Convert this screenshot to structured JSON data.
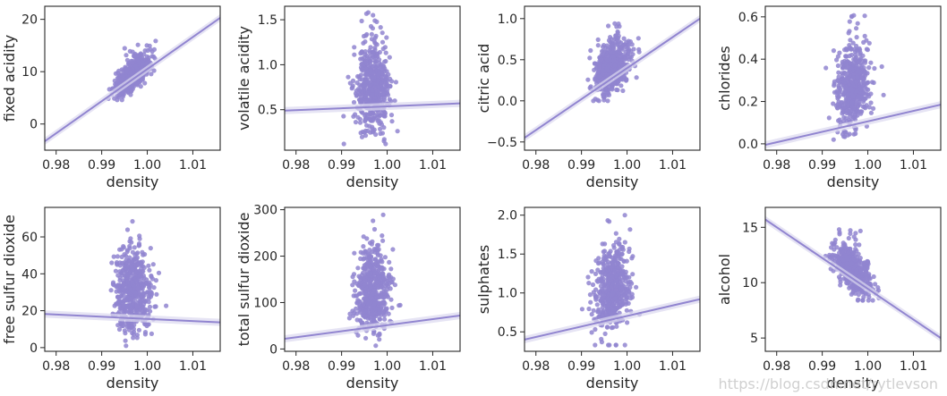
{
  "figure": {
    "point_color": "#9185d0",
    "line_color": "#9185d0",
    "band_color": "#dcd8f0",
    "watermark": "https://blog.csdn.net/rytlevson"
  },
  "chart_data": [
    {
      "type": "scatter",
      "xlabel": "density",
      "ylabel": "fixed acidity",
      "xlim": [
        0.9775,
        1.016
      ],
      "ylim": [
        -5,
        22.5
      ],
      "xticks": [
        0.98,
        0.99,
        1.0,
        1.01
      ],
      "xtick_labels": [
        "0.98",
        "0.99",
        "1.00",
        "1.01"
      ],
      "yticks": [
        0,
        10,
        20
      ],
      "ytick_labels": [
        "0",
        "10",
        "20"
      ],
      "cloud": {
        "x_center": 0.9967,
        "x_spread": 0.0019,
        "y_min": 4.6,
        "y_max": 15.9,
        "correlation": 0.67
      },
      "regression": {
        "x": [
          0.9775,
          1.016
        ],
        "y": [
          -3.3,
          20.3
        ]
      }
    },
    {
      "type": "scatter",
      "xlabel": "density",
      "ylabel": "volatile acidity",
      "xlim": [
        0.9775,
        1.016
      ],
      "ylim": [
        0.05,
        1.65
      ],
      "xticks": [
        0.98,
        0.99,
        1.0,
        1.01
      ],
      "xtick_labels": [
        "0.98",
        "0.99",
        "1.00",
        "1.01"
      ],
      "yticks": [
        0.5,
        1.0,
        1.5
      ],
      "ytick_labels": [
        "0.5",
        "1.0",
        "1.5"
      ],
      "cloud": {
        "x_center": 0.9967,
        "x_spread": 0.0019,
        "y_min": 0.12,
        "y_max": 1.58,
        "correlation": 0.02
      },
      "regression": {
        "x": [
          0.9775,
          1.016
        ],
        "y": [
          0.49,
          0.57
        ]
      }
    },
    {
      "type": "scatter",
      "xlabel": "density",
      "ylabel": "citric acid",
      "xlim": [
        0.9775,
        1.016
      ],
      "ylim": [
        -0.6,
        1.15
      ],
      "xticks": [
        0.98,
        0.99,
        1.0,
        1.01
      ],
      "xtick_labels": [
        "0.98",
        "0.99",
        "1.00",
        "1.01"
      ],
      "yticks": [
        -0.5,
        0.0,
        0.5,
        1.0
      ],
      "ytick_labels": [
        "−0.5",
        "0.0",
        "0.5",
        "1.0"
      ],
      "cloud": {
        "x_center": 0.9967,
        "x_spread": 0.0019,
        "y_min": 0.0,
        "y_max": 1.0,
        "correlation": 0.36
      },
      "regression": {
        "x": [
          0.9775,
          1.016
        ],
        "y": [
          -0.45,
          1.0
        ]
      }
    },
    {
      "type": "scatter",
      "xlabel": "density",
      "ylabel": "chlorides",
      "xlim": [
        0.9775,
        1.016
      ],
      "ylim": [
        -0.03,
        0.65
      ],
      "xticks": [
        0.98,
        0.99,
        1.0,
        1.01
      ],
      "xtick_labels": [
        "0.98",
        "0.99",
        "1.00",
        "1.01"
      ],
      "yticks": [
        0.0,
        0.2,
        0.4,
        0.6
      ],
      "ytick_labels": [
        "0.0",
        "0.2",
        "0.4",
        "0.6"
      ],
      "cloud": {
        "x_center": 0.9967,
        "x_spread": 0.0019,
        "y_min": 0.02,
        "y_max": 0.61,
        "correlation": 0.2
      },
      "regression": {
        "x": [
          0.9775,
          1.016
        ],
        "y": [
          -0.005,
          0.185
        ]
      }
    },
    {
      "type": "scatter",
      "xlabel": "density",
      "ylabel": "free sulfur dioxide",
      "xlim": [
        0.9775,
        1.016
      ],
      "ylim": [
        -2,
        76
      ],
      "xticks": [
        0.98,
        0.99,
        1.0,
        1.01
      ],
      "xtick_labels": [
        "0.98",
        "0.99",
        "1.00",
        "1.01"
      ],
      "yticks": [
        0,
        20,
        40,
        60
      ],
      "ytick_labels": [
        "0",
        "20",
        "40",
        "60"
      ],
      "cloud": {
        "x_center": 0.9967,
        "x_spread": 0.0019,
        "y_min": 1,
        "y_max": 72,
        "correlation": -0.05
      },
      "regression": {
        "x": [
          0.9775,
          1.016
        ],
        "y": [
          18.2,
          13.7
        ]
      }
    },
    {
      "type": "scatter",
      "xlabel": "density",
      "ylabel": "total sulfur dioxide",
      "xlim": [
        0.9775,
        1.016
      ],
      "ylim": [
        -5,
        305
      ],
      "xticks": [
        0.98,
        0.99,
        1.0,
        1.01
      ],
      "xtick_labels": [
        "0.98",
        "0.99",
        "1.00",
        "1.01"
      ],
      "yticks": [
        0,
        100,
        200,
        300
      ],
      "ytick_labels": [
        "0",
        "100",
        "200",
        "300"
      ],
      "cloud": {
        "x_center": 0.9967,
        "x_spread": 0.0019,
        "y_min": 6,
        "y_max": 289,
        "correlation": 0.07
      },
      "regression": {
        "x": [
          0.9775,
          1.016
        ],
        "y": [
          22,
          72
        ]
      }
    },
    {
      "type": "scatter",
      "xlabel": "density",
      "ylabel": "sulphates",
      "xlim": [
        0.9775,
        1.016
      ],
      "ylim": [
        0.25,
        2.1
      ],
      "xticks": [
        0.98,
        0.99,
        1.0,
        1.01
      ],
      "xtick_labels": [
        "0.98",
        "0.99",
        "1.00",
        "1.01"
      ],
      "yticks": [
        0.5,
        1.0,
        1.5,
        2.0
      ],
      "ytick_labels": [
        "0.5",
        "1.0",
        "1.5",
        "2.0"
      ],
      "cloud": {
        "x_center": 0.9967,
        "x_spread": 0.0019,
        "y_min": 0.33,
        "y_max": 2.0,
        "correlation": 0.15
      },
      "regression": {
        "x": [
          0.9775,
          1.016
        ],
        "y": [
          0.4,
          0.92
        ]
      }
    },
    {
      "type": "scatter",
      "xlabel": "density",
      "ylabel": "alcohol",
      "xlim": [
        0.9775,
        1.016
      ],
      "ylim": [
        3.8,
        16.8
      ],
      "xticks": [
        0.98,
        0.99,
        1.0,
        1.01
      ],
      "xtick_labels": [
        "0.98",
        "0.99",
        "1.00",
        "1.01"
      ],
      "yticks": [
        5,
        10,
        15
      ],
      "ytick_labels": [
        "5",
        "10",
        "15"
      ],
      "cloud": {
        "x_center": 0.9967,
        "x_spread": 0.0019,
        "y_min": 8.4,
        "y_max": 14.9,
        "correlation": -0.5
      },
      "regression": {
        "x": [
          0.9775,
          1.016
        ],
        "y": [
          15.7,
          5.0
        ]
      }
    }
  ]
}
